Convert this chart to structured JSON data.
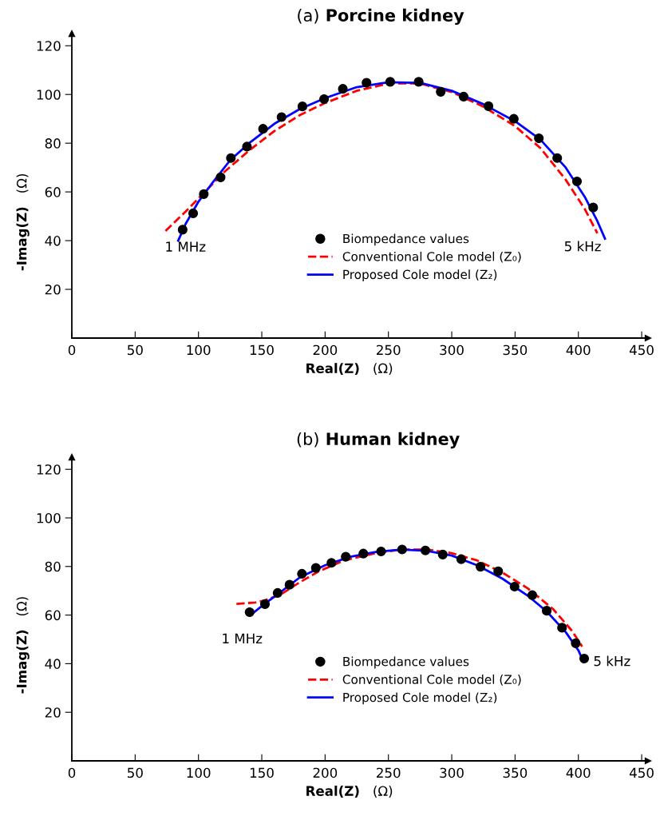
{
  "chart_data": [
    {
      "type": "line",
      "title": "(a) Porcine kidney",
      "xlabel": "Real(Z)   (Ω)",
      "ylabel": "-Imag(Z)   (Ω)",
      "xlim": [
        0,
        455
      ],
      "ylim": [
        0,
        125
      ],
      "xticks": [
        0,
        50,
        100,
        150,
        200,
        250,
        300,
        350,
        400,
        450
      ],
      "yticks": [
        20,
        40,
        60,
        80,
        100,
        120
      ],
      "grid": false,
      "legend": "bottom right",
      "annotations": [
        {
          "text": "1 MHz",
          "x": 84,
          "y": 40
        },
        {
          "text": "5 kHz",
          "x": 421,
          "y": 40.8
        }
      ],
      "series": [
        {
          "name": "Biompedance values",
          "type": "scatter",
          "color": "#000000",
          "marker": "circle",
          "x": [
            87.5,
            95.8,
            104.2,
            117.5,
            125.6,
            138.3,
            151.0,
            165.6,
            182.1,
            199.2,
            214.0,
            232.7,
            251.4,
            273.9,
            291.3,
            309.4,
            329.0,
            349.0,
            368.8,
            383.3,
            398.9,
            411.7
          ],
          "values": [
            44.5,
            51.2,
            59.1,
            66,
            73.9,
            78.6,
            85.9,
            90.7,
            95.1,
            98.1,
            102.3,
            104.8,
            105.2,
            105.2,
            101.1,
            99.1,
            95.2,
            90.0,
            82.0,
            73.9,
            64.3,
            53.6
          ]
        },
        {
          "name": "Conventional Cole model (Z₀)",
          "color": "#ff0000",
          "line_style": "dashed",
          "x": [
            74,
            90,
            105,
            120,
            140,
            160,
            180,
            200,
            225,
            250,
            275,
            300,
            325,
            350,
            370,
            390,
            405,
            415
          ],
          "values": [
            44,
            52,
            60,
            68,
            77,
            85,
            91.5,
            96.5,
            101.5,
            104.5,
            104.5,
            101,
            95,
            87,
            78,
            65,
            53,
            43
          ]
        },
        {
          "name": "Proposed Cole model (Z₂)",
          "color": "#0000ff",
          "line_style": "solid",
          "x": [
            84,
            90,
            100,
            110,
            125,
            140,
            160,
            180,
            200,
            225,
            250,
            275,
            300,
            325,
            350,
            370,
            390,
            405,
            415,
            421
          ],
          "values": [
            40,
            47,
            56,
            63,
            73,
            80,
            88,
            94,
            98.5,
            103,
            105,
            104.8,
            101.5,
            96,
            89,
            81.5,
            70,
            58,
            48,
            40.8
          ]
        }
      ]
    },
    {
      "type": "line",
      "title": "(b) Human kidney",
      "xlabel": "Real(Z)   (Ω)",
      "ylabel": "-Imag(Z)   (Ω)",
      "xlim": [
        0,
        455
      ],
      "ylim": [
        0,
        125
      ],
      "xticks": [
        0,
        50,
        100,
        150,
        200,
        250,
        300,
        350,
        400,
        450
      ],
      "yticks": [
        20,
        40,
        60,
        80,
        100,
        120
      ],
      "grid": false,
      "legend": "bottom right",
      "annotations": [
        {
          "text": "1 MHz",
          "x": 141.3,
          "y": 60.1
        },
        {
          "text": "5 kHz",
          "x": 404.2,
          "y": 40.6
        }
      ],
      "series": [
        {
          "name": "Biompedance values",
          "type": "scatter",
          "color": "#000000",
          "marker": "circle",
          "x": [
            140.4,
            152.5,
            162.5,
            171.9,
            181.7,
            192.7,
            205.0,
            216.3,
            230.2,
            244.2,
            260.8,
            279.2,
            292.9,
            307.5,
            322.7,
            336.7,
            349.6,
            363.6,
            375.0,
            387.1,
            397.9,
            404.6
          ],
          "values": [
            61.2,
            64.5,
            69.1,
            72.5,
            77.0,
            79.4,
            81.5,
            84.0,
            85.3,
            86.2,
            87.0,
            86.6,
            84.9,
            83.0,
            79.9,
            78.0,
            71.7,
            68.2,
            61.8,
            54.8,
            48.4,
            42.1
          ]
        },
        {
          "name": "Conventional Cole model (Z₀)",
          "color": "#ff0000",
          "line_style": "dashed",
          "x": [
            130,
            145,
            152,
            165,
            180,
            195,
            215,
            240,
            260,
            280,
            300,
            320,
            340,
            360,
            380,
            395,
            403
          ],
          "values": [
            64.6,
            65.2,
            66,
            68.5,
            73.5,
            78,
            82.5,
            85.5,
            87,
            87,
            85.5,
            82.5,
            77.5,
            71,
            62.5,
            53.5,
            47
          ]
        },
        {
          "name": "Proposed Cole model (Z₂)",
          "color": "#0000ff",
          "line_style": "solid",
          "x": [
            141.3,
            152,
            165,
            180,
            200,
            220,
            240,
            260,
            280,
            300,
            320,
            340,
            360,
            375,
            390,
            400,
            404.2
          ],
          "values": [
            60.1,
            64.5,
            69.5,
            75.5,
            80.5,
            84,
            86,
            87,
            86.5,
            84.5,
            80.5,
            75,
            68,
            61.5,
            53,
            45.5,
            40.6
          ]
        }
      ]
    }
  ]
}
